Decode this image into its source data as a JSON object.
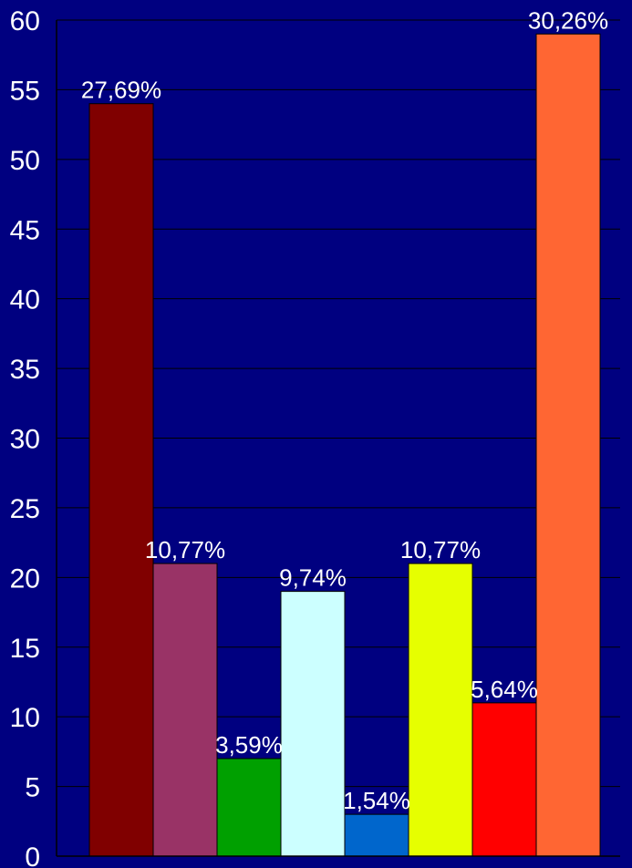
{
  "chart_data": {
    "type": "bar",
    "title": "",
    "xlabel": "",
    "ylabel": "",
    "ylim": [
      0,
      60
    ],
    "yticks": [
      0,
      5,
      10,
      15,
      20,
      25,
      30,
      35,
      40,
      45,
      50,
      55,
      60
    ],
    "grid": true,
    "legend": "none",
    "background_color": "#000080",
    "bars": [
      {
        "value": 54,
        "label": "27,69%",
        "color": "#800000"
      },
      {
        "value": 21,
        "label": "10,77%",
        "color": "#993366"
      },
      {
        "value": 7,
        "label": "3,59%",
        "color": "#00A000"
      },
      {
        "value": 19,
        "label": "9,74%",
        "color": "#CCFFFF"
      },
      {
        "value": 3,
        "label": "1,54%",
        "color": "#0066CC"
      },
      {
        "value": 21,
        "label": "10,77%",
        "color": "#E6FF00"
      },
      {
        "value": 11,
        "label": "5,64%",
        "color": "#FF0000"
      },
      {
        "value": 59,
        "label": "30,26%",
        "color": "#FF6633"
      }
    ]
  }
}
